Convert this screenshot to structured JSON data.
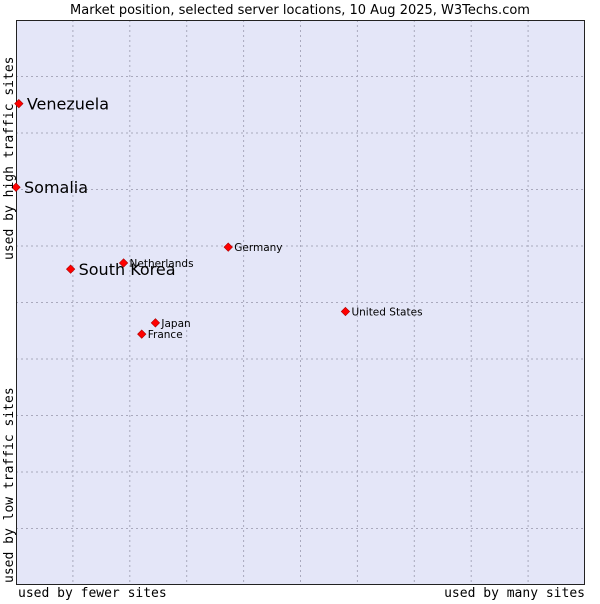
{
  "chart_data": {
    "type": "scatter",
    "title": "Market position, selected server locations, 10 Aug 2025, W3Techs.com",
    "xlabel_left": "used by fewer sites",
    "xlabel_right": "used by many sites",
    "ylabel_bottom": "used by low traffic sites",
    "ylabel_top": "used by high traffic sites",
    "xlim": [
      0,
      100
    ],
    "ylim": [
      0,
      100
    ],
    "grid": true,
    "colors": {
      "plot_background": "#e4e6f8",
      "grid": "#a9a9bd",
      "border": "#222222",
      "marker": "#ff0000",
      "marker_edge": "#aa0000",
      "text": "#000000"
    },
    "points": [
      {
        "label": "Venezuela",
        "x": 0.5,
        "y": 85.2,
        "emphasis": true
      },
      {
        "label": "Somalia",
        "x": 0.0,
        "y": 70.4,
        "emphasis": true
      },
      {
        "label": "South Korea",
        "x": 9.6,
        "y": 55.9,
        "emphasis": true
      },
      {
        "label": "Netherlands",
        "x": 18.9,
        "y": 57.0,
        "emphasis": false
      },
      {
        "label": "Germany",
        "x": 37.3,
        "y": 59.8,
        "emphasis": false
      },
      {
        "label": "United States",
        "x": 57.9,
        "y": 48.4,
        "emphasis": false
      },
      {
        "label": "Japan",
        "x": 24.5,
        "y": 46.4,
        "emphasis": false
      },
      {
        "label": "France",
        "x": 22.1,
        "y": 44.4,
        "emphasis": false
      }
    ]
  }
}
